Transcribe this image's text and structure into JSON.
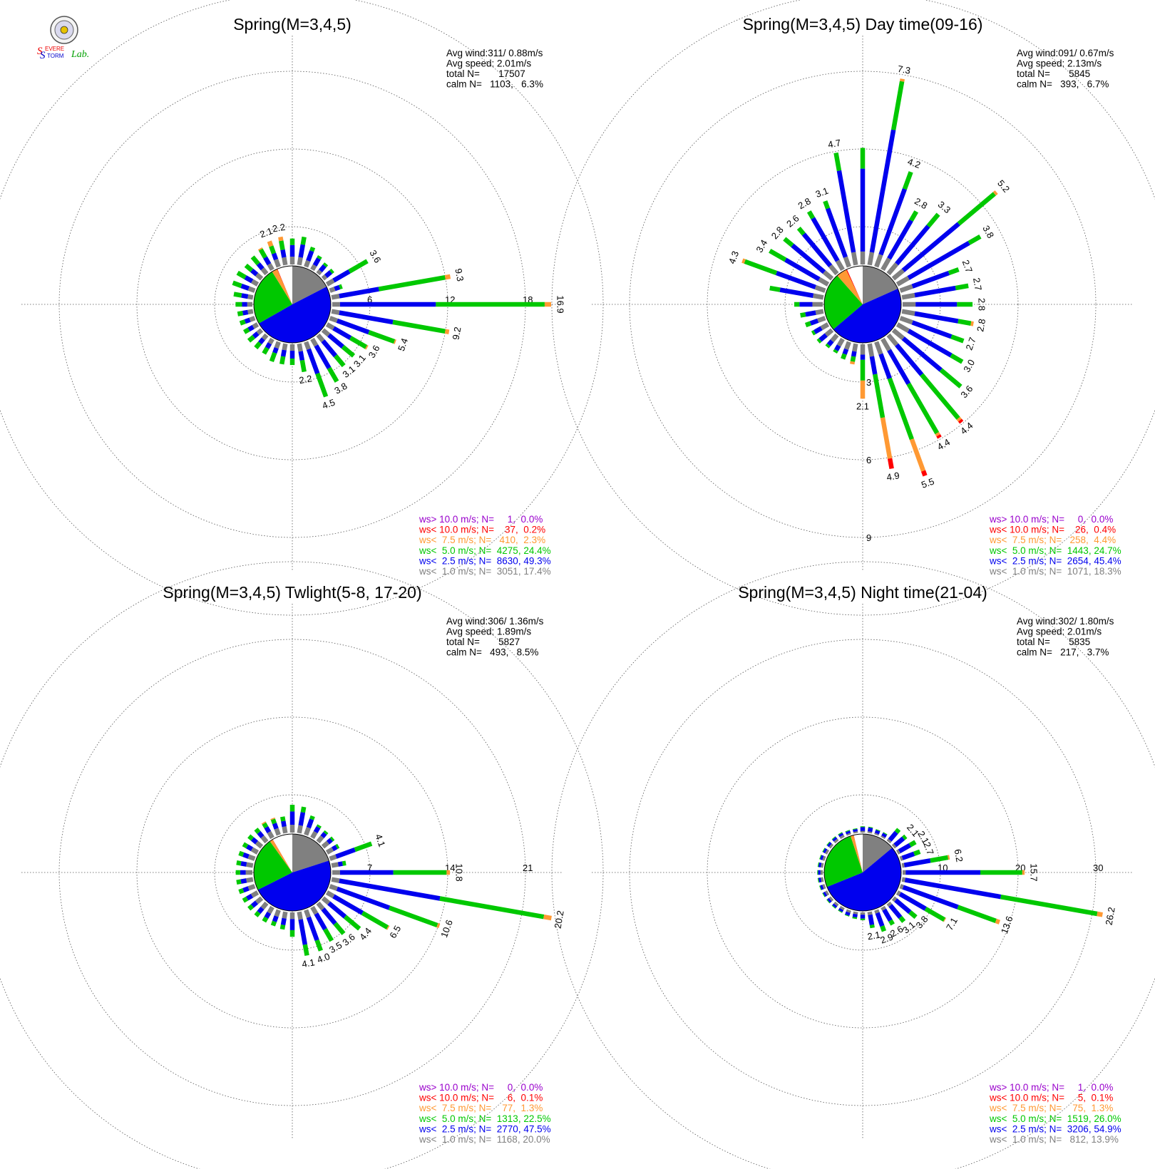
{
  "logo": {
    "text_s1": "S",
    "text_evere": "EVERE",
    "text_s2": "S",
    "text_torm": "TORM",
    "text_lab": "Lab."
  },
  "colors": {
    "calm": "#ffffff",
    "c_lt1": "#808080",
    "c_lt2_5": "#0000ee",
    "c_lt5": "#00c800",
    "c_lt7_5": "#ff9933",
    "c_lt10": "#ff0000",
    "c_gt10": "#9900cc",
    "grid": "#555555"
  },
  "chart_data": [
    {
      "type": "wind-rose",
      "title": "Spring(M=3,4,5)",
      "ring_ticks": [
        "6",
        "12",
        "18"
      ],
      "ring_values": [
        6,
        12,
        18
      ],
      "info": {
        "avg_wind": "Avg wind:311/ 0.88m/s",
        "avg_speed": "Avg speed: 2.01m/s",
        "total_n": "total N=       17507",
        "calm_n": "calm N=   1103,   6.3%"
      },
      "legend": [
        "ws> 10.0 m/s; N=     1,  0.0%",
        "ws< 10.0 m/s; N=    37,  0.2%",
        "ws<  7.5 m/s; N=   410,  2.3%",
        "ws<  5.0 m/s; N=  4275, 24.4%",
        "ws<  2.5 m/s; N=  8630, 49.3%",
        "ws<  1.0 m/s; N=  3051, 17.4%"
      ],
      "speed_fractions": {
        "calm": 0.063,
        "lt1": 0.174,
        "lt2_5": 0.493,
        "lt5": 0.244,
        "lt7_5": 0.023,
        "lt10": 0.002,
        "gt10": 0.0
      },
      "sector_labels": {
        "15": "3.8",
        "14": "3.1",
        "13": "3.1",
        "12": "3.6",
        "11": "5.4",
        "10": "9.2",
        "9": "16.9",
        "8": "9.3",
        "6": "3.6",
        "16": "4.5",
        "17": "2.2",
        "35": "2.2",
        "34": "2.1"
      },
      "sectors": [
        [
          0.6,
          0.9,
          0.5,
          0,
          0
        ],
        [
          0.6,
          1.0,
          0.6,
          0,
          0
        ],
        [
          0.5,
          0.8,
          0.3,
          0,
          0
        ],
        [
          0.4,
          0.6,
          0.2,
          0,
          0
        ],
        [
          0.3,
          0.5,
          0.2,
          0,
          0
        ],
        [
          0.3,
          0.5,
          0.2,
          0,
          0
        ],
        [
          0.6,
          1.4,
          1.6,
          0,
          0
        ],
        [
          0.4,
          0.4,
          0.2,
          0,
          0
        ],
        [
          0.6,
          3.1,
          5.2,
          0.4,
          0
        ],
        [
          0.6,
          7.4,
          8.4,
          0.5,
          0
        ],
        [
          0.6,
          4.2,
          4.1,
          0.3,
          0
        ],
        [
          0.6,
          2.6,
          2.1,
          0.1,
          0
        ],
        [
          0.6,
          1.5,
          1.4,
          0.1,
          0
        ],
        [
          0.6,
          1.4,
          1.1,
          0,
          0
        ],
        [
          0.6,
          1.5,
          1.0,
          0,
          0
        ],
        [
          0.6,
          2.0,
          1.2,
          0,
          0
        ],
        [
          0.6,
          2.0,
          1.9,
          0,
          0
        ],
        [
          0.6,
          0.7,
          0.9,
          0,
          0
        ],
        [
          0.5,
          0.6,
          0.5,
          0,
          0
        ],
        [
          0.5,
          0.5,
          0.6,
          0,
          0
        ],
        [
          0.5,
          0.4,
          0.7,
          0,
          0
        ],
        [
          0.4,
          0.4,
          0.5,
          0,
          0
        ],
        [
          0.4,
          0.4,
          0.5,
          0,
          0
        ],
        [
          0.4,
          0.4,
          0.5,
          0,
          0
        ],
        [
          0.4,
          0.4,
          0.4,
          0,
          0
        ],
        [
          0.4,
          0.4,
          0.4,
          0,
          0
        ],
        [
          0.4,
          0.4,
          0.4,
          0,
          0
        ],
        [
          0.4,
          0.4,
          0.5,
          0,
          0
        ],
        [
          0.4,
          0.5,
          0.6,
          0,
          0
        ],
        [
          0.5,
          0.6,
          0.7,
          0,
          0
        ],
        [
          0.5,
          0.6,
          0.7,
          0,
          0
        ],
        [
          0.5,
          0.5,
          0.6,
          0,
          0
        ],
        [
          0.5,
          0.5,
          0.7,
          0,
          0
        ],
        [
          0.5,
          0.6,
          0.7,
          0.1,
          0
        ],
        [
          0.6,
          0.5,
          0.6,
          0.4,
          0
        ],
        [
          0.6,
          0.6,
          0.7,
          0.3,
          0
        ]
      ]
    },
    {
      "type": "wind-rose",
      "title": "Spring(M=3,4,5) Day time(09-16)",
      "ring_ticks": [
        "3",
        "6",
        "9"
      ],
      "ring_values": [
        3,
        6,
        9
      ],
      "info": {
        "avg_wind": "Avg wind:091/ 0.67m/s",
        "avg_speed": "Avg speed: 2.13m/s",
        "total_n": "total N=       5845",
        "calm_n": "calm N=   393,   6.7%"
      },
      "legend": [
        "ws> 10.0 m/s; N=     0,  0.0%",
        "ws< 10.0 m/s; N=    26,  0.4%",
        "ws<  7.5 m/s; N=   258,  4.4%",
        "ws<  5.0 m/s; N=  1443, 24.7%",
        "ws<  2.5 m/s; N=  2654, 45.4%",
        "ws<  1.0 m/s; N=  1071, 18.3%"
      ],
      "speed_fractions": {
        "calm": 0.067,
        "lt1": 0.183,
        "lt2_5": 0.454,
        "lt5": 0.247,
        "lt7_5": 0.044,
        "lt10": 0.004,
        "gt10": 0.0
      },
      "sector_labels": {
        "1": "7.3",
        "2": "4.2",
        "3": "2.8",
        "4": "3.3",
        "5": "5.2",
        "6": "3.8",
        "7": "2.7",
        "8": "2.7",
        "9": "2.8",
        "10": "2.8",
        "11": "2.7",
        "12": "3.0",
        "13": "3.6",
        "14": "4.4",
        "15": "4.4",
        "16": "5.5",
        "17": "4.9",
        "18": "2.1",
        "35": "4.7",
        "34": "3.1",
        "33": "2.8",
        "32": "2.6",
        "31": "2.8",
        "30": "3.4",
        "29": "4.3"
      },
      "sectors": [
        [
          0.5,
          3.2,
          0.8,
          0,
          0
        ],
        [
          0.5,
          4.8,
          1.9,
          0.1,
          0
        ],
        [
          0.5,
          2.7,
          0.7,
          0,
          0
        ],
        [
          0.5,
          1.7,
          0.4,
          0,
          0
        ],
        [
          0.5,
          1.9,
          0.6,
          0,
          0
        ],
        [
          0.5,
          2.8,
          1.8,
          0.1,
          0
        ],
        [
          0.5,
          2.7,
          0.5,
          0,
          0
        ],
        [
          0.5,
          1.5,
          0.4,
          0,
          0
        ],
        [
          0.5,
          1.6,
          0.5,
          0,
          0
        ],
        [
          0.5,
          1.6,
          0.6,
          0,
          0
        ],
        [
          0.5,
          1.7,
          0.5,
          0.1,
          0
        ],
        [
          0.5,
          1.6,
          0.5,
          0,
          0
        ],
        [
          0.5,
          1.9,
          0.5,
          0,
          0
        ],
        [
          0.5,
          1.9,
          1.0,
          0,
          0
        ],
        [
          0.5,
          1.5,
          2.2,
          0.1,
          0.1
        ],
        [
          0.5,
          1.5,
          2.2,
          0.1,
          0.1
        ],
        [
          0.5,
          1.0,
          2.5,
          1.3,
          0.2
        ],
        [
          0.5,
          0.7,
          1.7,
          1.6,
          0.4
        ],
        [
          0.4,
          0.2,
          0.8,
          0.7,
          0
        ],
        [
          0.3,
          0.2,
          0.2,
          0.1,
          0
        ],
        [
          0.3,
          0.2,
          0.2,
          0,
          0
        ],
        [
          0.3,
          0.2,
          0.1,
          0,
          0
        ],
        [
          0.3,
          0.2,
          0.1,
          0,
          0
        ],
        [
          0.3,
          0.3,
          0.1,
          0,
          0
        ],
        [
          0.3,
          0.3,
          0.1,
          0,
          0
        ],
        [
          0.3,
          0.3,
          0.2,
          0,
          0
        ],
        [
          0.3,
          0.4,
          0.2,
          0,
          0
        ],
        [
          0.4,
          0.5,
          0.2,
          0,
          0
        ],
        [
          0.4,
          1.3,
          0.4,
          0,
          0
        ],
        [
          0.4,
          1.6,
          1.3,
          0.1,
          0
        ],
        [
          0.4,
          1.5,
          0.7,
          0,
          0
        ],
        [
          0.4,
          1.6,
          0.4,
          0,
          0
        ],
        [
          0.4,
          1.6,
          0.3,
          0,
          0
        ],
        [
          0.4,
          1.9,
          0.3,
          0,
          0
        ],
        [
          0.4,
          2.0,
          0.3,
          0,
          0
        ],
        [
          0.5,
          3.2,
          0.7,
          0,
          0
        ]
      ]
    },
    {
      "type": "wind-rose",
      "title": "Spring(M=3,4,5) Twlight(5-8, 17-20)",
      "ring_ticks": [
        "7",
        "14",
        "21"
      ],
      "ring_values": [
        7,
        14,
        21
      ],
      "info": {
        "avg_wind": "Avg wind:306/ 1.36m/s",
        "avg_speed": "Avg speed: 1.89m/s",
        "total_n": "total N=       5827",
        "calm_n": "calm N=   493,   8.5%"
      },
      "legend": [
        "ws> 10.0 m/s; N=     0,  0.0%",
        "ws< 10.0 m/s; N=     6,  0.1%",
        "ws<  7.5 m/s; N=    77,  1.3%",
        "ws<  5.0 m/s; N=  1313, 22.5%",
        "ws<  2.5 m/s; N=  2770, 47.5%",
        "ws<  1.0 m/s; N=  1168, 20.0%"
      ],
      "speed_fractions": {
        "calm": 0.085,
        "lt1": 0.2,
        "lt2_5": 0.475,
        "lt5": 0.225,
        "lt7_5": 0.013,
        "lt10": 0.001,
        "gt10": 0.0
      },
      "sector_labels": {
        "15": "3.5",
        "14": "3.6",
        "13": "4.4",
        "12": "6.5",
        "11": "10.6",
        "10": "20.2",
        "9": "10.8",
        "7": "4.1",
        "16": "4.0",
        "17": "4.1"
      },
      "sectors": [
        [
          0.7,
          1.2,
          0.6,
          0,
          0
        ],
        [
          0.7,
          1.2,
          0.5,
          0,
          0
        ],
        [
          0.7,
          0.8,
          0.3,
          0,
          0
        ],
        [
          0.6,
          0.5,
          0.2,
          0,
          0
        ],
        [
          0.6,
          0.4,
          0.2,
          0,
          0
        ],
        [
          0.6,
          0.4,
          0.2,
          0,
          0
        ],
        [
          0.6,
          0.4,
          0.2,
          0,
          0
        ],
        [
          0.6,
          1.8,
          1.6,
          0,
          0
        ],
        [
          0.6,
          0.4,
          0.3,
          0,
          0
        ],
        [
          0.7,
          4.8,
          4.8,
          0.3,
          0
        ],
        [
          0.7,
          9.2,
          9.5,
          0.7,
          0
        ],
        [
          0.7,
          5.0,
          4.6,
          0.2,
          0
        ],
        [
          0.7,
          3.0,
          2.6,
          0.1,
          0
        ],
        [
          0.7,
          1.9,
          1.7,
          0,
          0
        ],
        [
          0.7,
          1.7,
          1.2,
          0,
          0
        ],
        [
          0.7,
          1.6,
          1.2,
          0,
          0
        ],
        [
          0.7,
          2.2,
          1.0,
          0,
          0
        ],
        [
          0.7,
          2.3,
          1.0,
          0,
          0
        ],
        [
          0.6,
          1.0,
          0.6,
          0,
          0
        ],
        [
          0.6,
          0.6,
          0.4,
          0,
          0
        ],
        [
          0.6,
          0.5,
          0.4,
          0,
          0
        ],
        [
          0.6,
          0.5,
          0.4,
          0,
          0
        ],
        [
          0.6,
          0.5,
          0.4,
          0,
          0
        ],
        [
          0.6,
          0.5,
          0.4,
          0,
          0
        ],
        [
          0.6,
          0.5,
          0.4,
          0,
          0
        ],
        [
          0.6,
          0.5,
          0.4,
          0,
          0
        ],
        [
          0.6,
          0.5,
          0.4,
          0,
          0
        ],
        [
          0.6,
          0.5,
          0.4,
          0,
          0
        ],
        [
          0.6,
          0.5,
          0.4,
          0,
          0
        ],
        [
          0.6,
          0.5,
          0.4,
          0,
          0
        ],
        [
          0.6,
          0.5,
          0.4,
          0,
          0
        ],
        [
          0.6,
          0.5,
          0.4,
          0,
          0
        ],
        [
          0.6,
          0.5,
          0.4,
          0,
          0
        ],
        [
          0.6,
          0.5,
          0.4,
          0.1,
          0
        ],
        [
          0.6,
          0.5,
          0.4,
          0.1,
          0
        ],
        [
          0.6,
          0.5,
          0.4,
          0,
          0
        ]
      ]
    },
    {
      "type": "wind-rose",
      "title": "Spring(M=3,4,5) Night time(21-04)",
      "ring_ticks": [
        "10",
        "20",
        "30"
      ],
      "ring_values": [
        10,
        20,
        30
      ],
      "info": {
        "avg_wind": "Avg wind:302/ 1.80m/s",
        "avg_speed": "Avg speed: 2.01m/s",
        "total_n": "total N=       5835",
        "calm_n": "calm N=   217,   3.7%"
      },
      "legend": [
        "ws> 10.0 m/s; N=     1,  0.0%",
        "ws< 10.0 m/s; N=     5,  0.1%",
        "ws<  7.5 m/s; N=    75,  1.3%",
        "ws<  5.0 m/s; N=  1519, 26.0%",
        "ws<  2.5 m/s; N=  3206, 54.9%",
        "ws<  1.0 m/s; N=   812, 13.9%"
      ],
      "speed_fractions": {
        "calm": 0.037,
        "lt1": 0.139,
        "lt2_5": 0.549,
        "lt5": 0.26,
        "lt7_5": 0.013,
        "lt10": 0.001,
        "gt10": 0.0
      },
      "sector_labels": {
        "16": "2.9",
        "15": "2.6",
        "14": "3.1",
        "13": "3.8",
        "12": "7.1",
        "11": "13.6",
        "10": "26.2",
        "9": "15.7",
        "8": "6.2",
        "7": "2.7",
        "6": "2.1",
        "5": "2.1",
        "17": "2.1"
      },
      "sectors": [
        [
          0.2,
          0.5,
          0.1,
          0,
          0
        ],
        [
          0.2,
          0.5,
          0.1,
          0,
          0
        ],
        [
          0.2,
          0.4,
          0.1,
          0,
          0
        ],
        [
          0.2,
          0.4,
          0.1,
          0,
          0
        ],
        [
          0.3,
          1.3,
          0.5,
          0,
          0
        ],
        [
          0.3,
          1.4,
          0.4,
          0,
          0
        ],
        [
          0.3,
          1.6,
          0.8,
          0,
          0
        ],
        [
          0.3,
          1.6,
          0.8,
          0,
          0
        ],
        [
          0.3,
          3.4,
          2.3,
          0.2,
          0
        ],
        [
          0.4,
          9.6,
          5.4,
          0.3,
          0
        ],
        [
          0.4,
          12.5,
          12.6,
          0.7,
          0
        ],
        [
          0.4,
          7.5,
          5.2,
          0.5,
          0
        ],
        [
          0.4,
          3.8,
          2.8,
          0.1,
          0
        ],
        [
          0.4,
          2.4,
          1.0,
          0,
          0
        ],
        [
          0.4,
          2.0,
          0.7,
          0,
          0
        ],
        [
          0.4,
          1.6,
          0.6,
          0,
          0
        ],
        [
          0.4,
          1.8,
          0.7,
          0,
          0
        ],
        [
          0.4,
          1.3,
          0.4,
          0,
          0
        ],
        [
          0.3,
          0.5,
          0.2,
          0,
          0
        ],
        [
          0.3,
          0.4,
          0.2,
          0,
          0
        ],
        [
          0.3,
          0.4,
          0.1,
          0,
          0
        ],
        [
          0.3,
          0.3,
          0.1,
          0,
          0
        ],
        [
          0.3,
          0.3,
          0.1,
          0,
          0
        ],
        [
          0.3,
          0.3,
          0.1,
          0,
          0
        ],
        [
          0.3,
          0.3,
          0.1,
          0,
          0
        ],
        [
          0.3,
          0.3,
          0.1,
          0,
          0
        ],
        [
          0.3,
          0.3,
          0.1,
          0,
          0
        ],
        [
          0.3,
          0.3,
          0.1,
          0,
          0
        ],
        [
          0.3,
          0.3,
          0.1,
          0,
          0
        ],
        [
          0.3,
          0.3,
          0.1,
          0,
          0
        ],
        [
          0.3,
          0.3,
          0.1,
          0,
          0
        ],
        [
          0.3,
          0.3,
          0.1,
          0,
          0
        ],
        [
          0.3,
          0.3,
          0.1,
          0,
          0
        ],
        [
          0.3,
          0.3,
          0.1,
          0,
          0
        ],
        [
          0.2,
          0.3,
          0.1,
          0,
          0
        ],
        [
          0.2,
          0.3,
          0.1,
          0,
          0
        ]
      ]
    }
  ]
}
